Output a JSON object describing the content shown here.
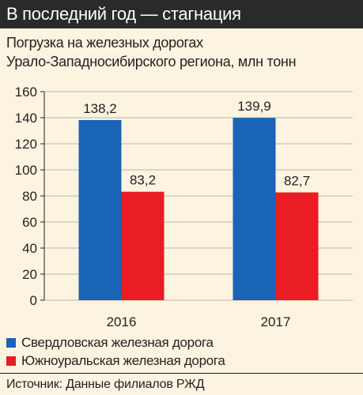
{
  "header": {
    "title": "В последний год — стагнация"
  },
  "chart_data": {
    "type": "bar",
    "title": "Погрузка на железных дорогах",
    "subtitle": "Урало-Западносибирского региона, млн тонн",
    "categories": [
      "2016",
      "2017"
    ],
    "series": [
      {
        "name": "Свердловская железная дорога",
        "values": [
          138.2,
          139.9
        ],
        "labels": [
          "138,2",
          "139,9"
        ],
        "color": "#1a64b8"
      },
      {
        "name": "Южноуральская железная дорога",
        "values": [
          83.2,
          82.7
        ],
        "labels": [
          "83,2",
          "82,7"
        ],
        "color": "#ea1c24"
      }
    ],
    "ylim": [
      0,
      160
    ],
    "yticks": [
      0,
      20,
      40,
      60,
      80,
      100,
      120,
      140,
      160
    ],
    "grid": true,
    "legend": "bottom-left"
  },
  "source": "Источник: Данные филиалов РЖД"
}
